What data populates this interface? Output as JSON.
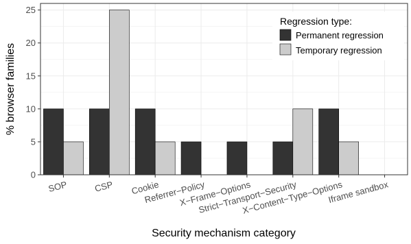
{
  "chart_data": {
    "type": "bar",
    "title": "",
    "xlabel": "Security mechanism category",
    "ylabel": "% browser families",
    "ylim": [
      0,
      26
    ],
    "yticks": [
      0,
      5,
      10,
      15,
      20,
      25
    ],
    "grid": true,
    "categories": [
      "SOP",
      "CSP",
      "Cookie",
      "Referrer−Policy",
      "X−Frame−Options",
      "Strict−Transport−Security",
      "X−Content−Type−Options",
      "Iframe sandbox"
    ],
    "legend": {
      "title": "Regression type:",
      "position": "top-right"
    },
    "series": [
      {
        "name": "Permanent regression",
        "color": "#333333",
        "values": [
          10,
          10,
          10,
          5,
          5,
          5,
          10,
          0
        ]
      },
      {
        "name": "Temporary regression",
        "color": "#cccccc",
        "values": [
          5,
          25,
          5,
          0,
          0,
          10,
          5,
          0
        ]
      }
    ]
  }
}
